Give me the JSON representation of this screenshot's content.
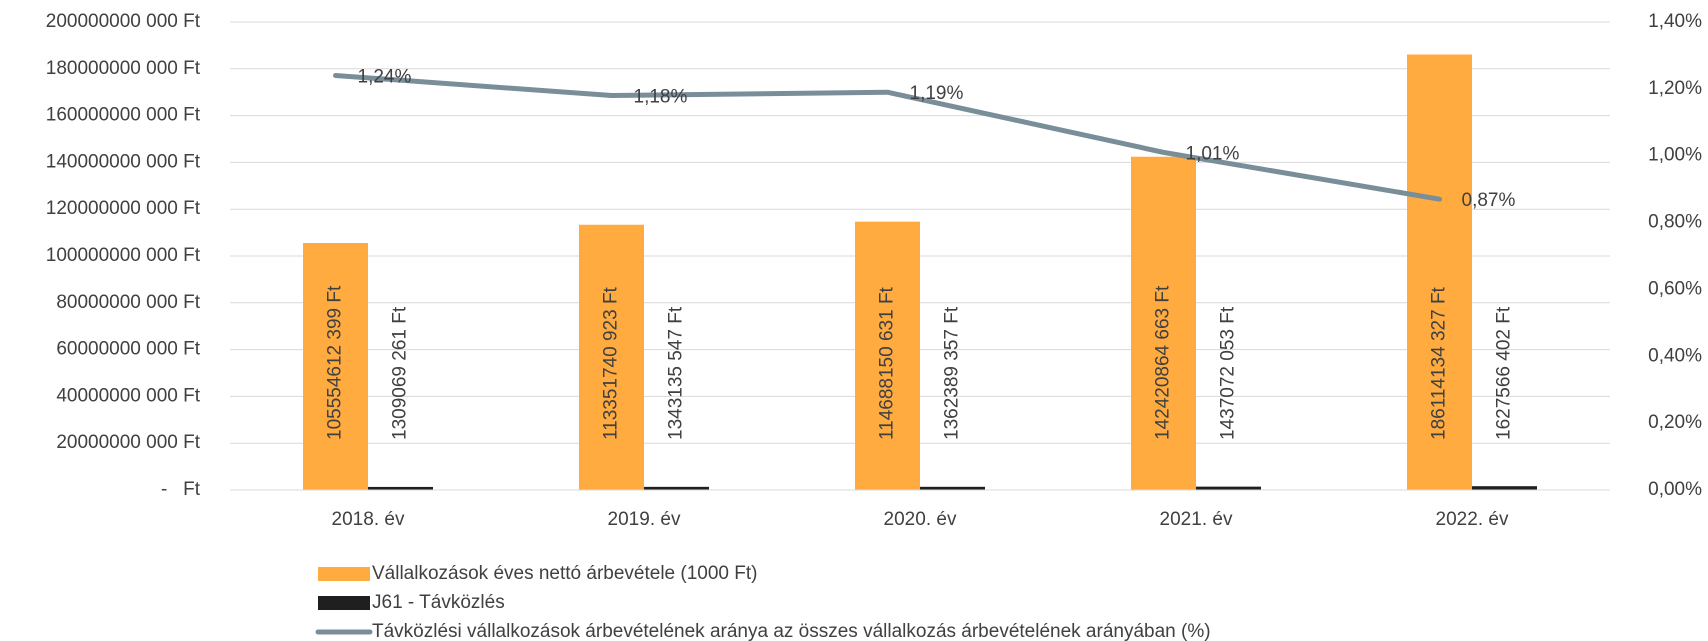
{
  "chart_data": {
    "type": "bar",
    "categories": [
      "2018. év",
      "2019. év",
      "2020. év",
      "2021. év",
      "2022. év"
    ],
    "series": [
      {
        "name": "Vállalkozások éves nettó árbevétele (1000 Ft)",
        "type": "bar",
        "color": "#ffab40",
        "values": [
          105554612399,
          113351740923,
          114688150631,
          142420864663,
          186114134327
        ],
        "value_labels": [
          "105554612 399 Ft",
          "113351740 923 Ft",
          "114688150 631 Ft",
          "142420864 663 Ft",
          "186114134 327 Ft"
        ]
      },
      {
        "name": "J61 - Távközlés",
        "type": "bar",
        "color": "#1f1f1f",
        "values": [
          1309069261,
          1343135547,
          1362389357,
          1437072053,
          1627566402
        ],
        "value_labels": [
          "1309069 261 Ft",
          "1343135 547 Ft",
          "1362389 357 Ft",
          "1437072 053 Ft",
          "1627566 402 Ft"
        ]
      },
      {
        "name": "Távközlési vállalkozások árbevételének aránya az összes vállalkozás árbevételének arányában (%)",
        "type": "line",
        "axis": "y2",
        "color": "#7a8e9a",
        "values": [
          1.24,
          1.18,
          1.19,
          1.01,
          0.87
        ],
        "value_labels": [
          "1,24%",
          "1,18%",
          "1,19%",
          "1,01%",
          "0,87%"
        ]
      }
    ],
    "ylim": [
      0,
      200000000000
    ],
    "yticks": [
      {
        "value": 0,
        "label": "-   Ft"
      },
      {
        "value": 20000000000,
        "label": "20000000 000 Ft"
      },
      {
        "value": 40000000000,
        "label": "40000000 000 Ft"
      },
      {
        "value": 60000000000,
        "label": "60000000 000 Ft"
      },
      {
        "value": 80000000000,
        "label": "80000000 000 Ft"
      },
      {
        "value": 100000000000,
        "label": "100000000 000 Ft"
      },
      {
        "value": 120000000000,
        "label": "120000000 000 Ft"
      },
      {
        "value": 140000000000,
        "label": "140000000 000 Ft"
      },
      {
        "value": 160000000000,
        "label": "160000000 000 Ft"
      },
      {
        "value": 180000000000,
        "label": "180000000 000 Ft"
      },
      {
        "value": 200000000000,
        "label": "200000000 000 Ft"
      }
    ],
    "y2lim": [
      0,
      1.4
    ],
    "y2ticks": [
      {
        "value": 0,
        "label": "0,00%"
      },
      {
        "value": 0.2,
        "label": "0,20%"
      },
      {
        "value": 0.4,
        "label": "0,40%"
      },
      {
        "value": 0.6,
        "label": "0,60%"
      },
      {
        "value": 0.8,
        "label": "0,80%"
      },
      {
        "value": 1.0,
        "label": "1,00%"
      },
      {
        "value": 1.2,
        "label": "1,20%"
      },
      {
        "value": 1.4,
        "label": "1,40%"
      }
    ],
    "grid": true,
    "legend": "bottom"
  }
}
